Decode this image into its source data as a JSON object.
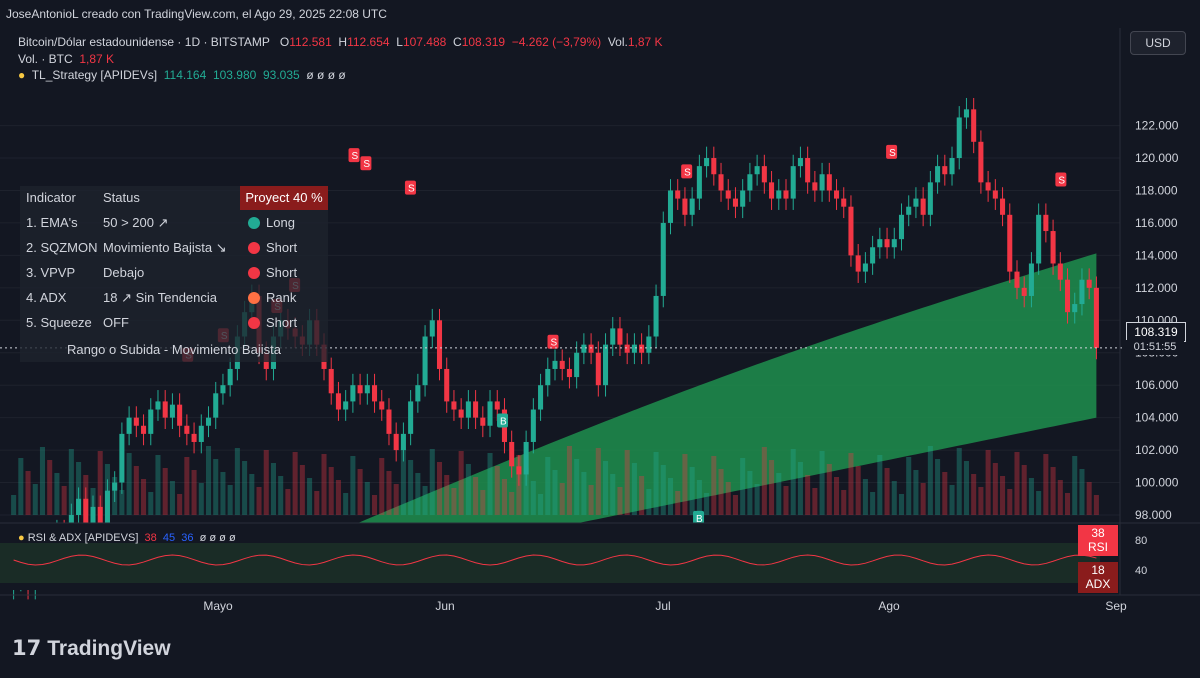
{
  "credit": "JoseAntonioL creado con TradingView.com, el Ago 29, 2025 22:08 UTC",
  "header": {
    "symbol": "Bitcoin/Dólar estadounidense · 1D · BITSTAMP",
    "o_label": "O",
    "o": "112.581",
    "h_label": "H",
    "h": "112.654",
    "l_label": "L",
    "l": "107.488",
    "c_label": "C",
    "c": "108.319",
    "change": "−4.262 (−3,79%)",
    "vol_label": "Vol.",
    "vol": "1,87 K",
    "vol2_label": "Vol. · BTC",
    "vol2": "1,87 K",
    "strategy_label": "TL_Strategy [APIDEVs]",
    "strategy_values": [
      "114.164",
      "103.980",
      "93.035"
    ],
    "strategy_zeros": "ø ø ø ø"
  },
  "currency_button": "USD",
  "table": {
    "headers": {
      "indicator": "Indicator",
      "status": "Status",
      "proyect": "Proyect 40 %"
    },
    "rows": [
      {
        "indicator": "1. EMA's",
        "status": "50 > 200 ↗",
        "signal": "Long",
        "color": "#22ab94"
      },
      {
        "indicator": "2. SQZMON",
        "status": "Movimiento Bajista ↘",
        "signal": "Short",
        "color": "#f23645"
      },
      {
        "indicator": "3. VPVP",
        "status": "Debajo",
        "signal": "Short",
        "color": "#f23645"
      },
      {
        "indicator": "4. ADX",
        "status": "18 ↗ Sin Tendencia",
        "signal": "Rank",
        "color": "#ff7043"
      },
      {
        "indicator": "5. Squeeze",
        "status": "OFF",
        "signal": "Short",
        "color": "#f23645"
      }
    ],
    "footer": "Rango o Subida - Movimiento Bajista"
  },
  "price_tag": {
    "price": "108.319",
    "countdown": "01:51:55"
  },
  "rsi_panel": {
    "label": "RSI & ADX [APIDEVS]",
    "values": [
      "38",
      "45",
      "36"
    ],
    "zeros": "ø ø ø ø",
    "rsi_value": "38",
    "rsi_label": "RSI",
    "adx_value": "18",
    "adx_label": "ADX",
    "axis": [
      "80",
      "40"
    ]
  },
  "chart_data": {
    "type": "candlestick",
    "y_ticks": [
      "122.000",
      "120.000",
      "118.000",
      "116.000",
      "114.000",
      "112.000",
      "110.000",
      "108.000",
      "106.000",
      "104.000",
      "102.000",
      "100.000",
      "98.000"
    ],
    "ylim": [
      98000,
      124500
    ],
    "x_ticks": [
      "Mayo",
      "Jun",
      "Jul",
      "Ago",
      "Sep"
    ],
    "close": [
      94000,
      95000,
      93500,
      94500,
      96000,
      95500,
      97000,
      96500,
      98000,
      99000,
      97500,
      98500,
      97000,
      99500,
      100000,
      103000,
      104000,
      103500,
      103000,
      104500,
      105000,
      104000,
      104800,
      103500,
      103000,
      102500,
      103500,
      104000,
      105500,
      106000,
      107000,
      109000,
      110500,
      111500,
      108000,
      107000,
      109000,
      110000,
      109500,
      109000,
      108500,
      110000,
      108500,
      107000,
      105500,
      104500,
      105000,
      106000,
      105500,
      106000,
      105000,
      104500,
      103000,
      102000,
      103000,
      105000,
      106000,
      109000,
      110000,
      107000,
      105000,
      104500,
      104000,
      105000,
      104000,
      103500,
      105000,
      104500,
      102500,
      101000,
      100500,
      102500,
      104500,
      106000,
      107000,
      107500,
      107000,
      106500,
      108000,
      108500,
      108000,
      106000,
      108500,
      109500,
      108500,
      108000,
      108500,
      108000,
      109000,
      111500,
      116000,
      118000,
      117500,
      116500,
      117500,
      119500,
      120000,
      119000,
      118000,
      117500,
      117000,
      118000,
      119000,
      119500,
      118500,
      117500,
      118000,
      117500,
      119500,
      120000,
      118500,
      118000,
      119000,
      118000,
      117500,
      117000,
      114000,
      113000,
      113500,
      114500,
      115000,
      114500,
      115000,
      116500,
      117000,
      117500,
      116500,
      118500,
      119500,
      119000,
      120000,
      122500,
      123000,
      121000,
      118500,
      118000,
      117500,
      116500,
      113000,
      112000,
      111500,
      113500,
      116500,
      115500,
      113500,
      112500,
      110500,
      111000,
      112500,
      112000,
      108300
    ],
    "volume_note": "Volumen BTC",
    "ema_upper_end": 114164,
    "ema_lower_end": 103980,
    "signals_s": [
      [
        60,
        107200
      ],
      [
        72,
        108400
      ],
      [
        90,
        110200
      ],
      [
        96,
        111500
      ],
      [
        116,
        119500
      ],
      [
        120,
        119000
      ],
      [
        135,
        117500
      ],
      [
        183,
        108000
      ],
      [
        228,
        118500
      ],
      [
        297,
        119700
      ],
      [
        354,
        118000
      ]
    ],
    "signals_b": [
      [
        166,
        104500
      ],
      [
        405,
        113100
      ],
      [
        232,
        98500
      ]
    ]
  }
}
